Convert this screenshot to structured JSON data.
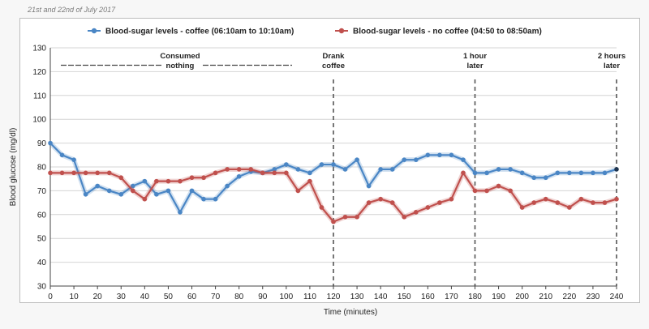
{
  "caption": "21st and 22nd of July 2017",
  "chart_data": {
    "type": "line",
    "xlabel": "Time (minutes)",
    "ylabel": "Blood glucose (mg/dl)",
    "xlim": [
      0,
      240
    ],
    "ylim": [
      30,
      130
    ],
    "x_ticks": [
      0,
      10,
      20,
      30,
      40,
      50,
      60,
      70,
      80,
      90,
      100,
      110,
      120,
      130,
      140,
      150,
      160,
      170,
      180,
      190,
      200,
      210,
      220,
      230,
      240
    ],
    "y_ticks": [
      30,
      40,
      50,
      60,
      70,
      80,
      90,
      100,
      110,
      120,
      130
    ],
    "grid": "horizontal",
    "legend_position": "top",
    "series": [
      {
        "name": "Blood-sugar levels - coffee (06:10am to 10:10am)",
        "color": "#4a86c5",
        "x": [
          0,
          5,
          10,
          15,
          20,
          25,
          30,
          35,
          40,
          45,
          50,
          55,
          60,
          65,
          70,
          75,
          80,
          85,
          90,
          95,
          100,
          105,
          110,
          115,
          120,
          125,
          130,
          135,
          140,
          145,
          150,
          155,
          160,
          165,
          170,
          175,
          180,
          185,
          190,
          195,
          200,
          205,
          210,
          215,
          220,
          225,
          230,
          235,
          240
        ],
        "values": [
          90,
          85,
          83,
          68.5,
          72,
          70,
          68.5,
          72,
          74,
          68.5,
          70,
          61,
          70,
          66.5,
          66.5,
          72,
          76,
          78,
          77.5,
          79,
          81,
          79,
          77.5,
          81,
          81,
          79,
          83,
          72,
          79,
          79,
          83,
          83,
          85,
          85,
          85,
          83,
          77.5,
          77.5,
          79,
          79,
          77.5,
          75.5,
          75.5,
          77.5,
          77.5,
          77.5,
          77.5,
          77.5,
          79
        ]
      },
      {
        "name": "Blood-sugar levels - no coffee (04:50 to 08:50am)",
        "color": "#c0504d",
        "x": [
          0,
          5,
          10,
          15,
          20,
          25,
          30,
          35,
          40,
          45,
          50,
          55,
          60,
          65,
          70,
          75,
          80,
          85,
          90,
          95,
          100,
          105,
          110,
          115,
          120,
          125,
          130,
          135,
          140,
          145,
          150,
          155,
          160,
          165,
          170,
          175,
          180,
          185,
          190,
          195,
          200,
          205,
          210,
          215,
          220,
          225,
          230,
          235,
          240
        ],
        "values": [
          77.5,
          77.5,
          77.5,
          77.5,
          77.5,
          77.5,
          75.5,
          70,
          66.5,
          74,
          74,
          74,
          75.5,
          75.5,
          77.5,
          79,
          79,
          79,
          77.5,
          77.5,
          77.5,
          70,
          74,
          63,
          57,
          59,
          59,
          65,
          66.5,
          65,
          59,
          61,
          63,
          65,
          66.5,
          77.5,
          70,
          70,
          72,
          70,
          63,
          65,
          66.5,
          65,
          63,
          66.5,
          65,
          65,
          66.5
        ]
      }
    ],
    "annotations": [
      {
        "lines": [
          "Consumed",
          "nothing"
        ],
        "x": 55
      },
      {
        "lines": [
          "Drank",
          "coffee"
        ],
        "x": 120
      },
      {
        "lines": [
          "1 hour",
          "later"
        ],
        "x": 180
      },
      {
        "lines": [
          "2 hours",
          "later"
        ],
        "x": 240
      }
    ],
    "markers_x": [
      120,
      180,
      240
    ]
  }
}
